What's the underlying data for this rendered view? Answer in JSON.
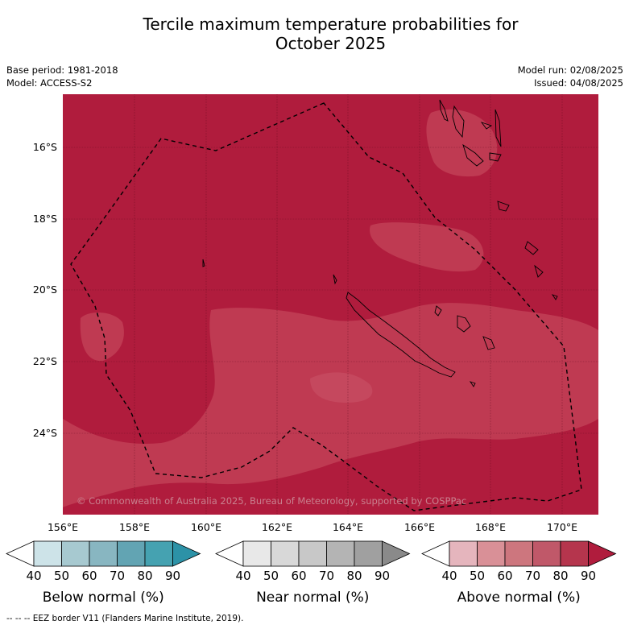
{
  "title_line1": "Tercile maximum temperature probabilities for",
  "title_line2": "October 2025",
  "base_period": "Base period: 1981-2018",
  "model": "Model: ACCESS-S2",
  "model_run": "Model run: 02/08/2025",
  "issued": "Issued: 04/08/2025",
  "lat_labels": [
    "16°S",
    "18°S",
    "20°S",
    "22°S",
    "24°S"
  ],
  "lon_labels": [
    "156°E",
    "158°E",
    "160°E",
    "162°E",
    "164°E",
    "166°E",
    "168°E",
    "170°E"
  ],
  "copyright": "© Commonwealth of Australia 2025, Bureau of Meteorology, supported by COSPPac",
  "colorbars": [
    {
      "name": "Below normal (%)",
      "ticks": [
        "40",
        "50",
        "60",
        "70",
        "80",
        "90"
      ],
      "colors": [
        "#ffffff",
        "#cde3e8",
        "#a7c9d0",
        "#88b6c1",
        "#62a4b3",
        "#45a2b1",
        "#2c92a7"
      ]
    },
    {
      "name": "Near normal (%)",
      "ticks": [
        "40",
        "50",
        "60",
        "70",
        "80",
        "90"
      ],
      "colors": [
        "#ffffff",
        "#e8e8e8",
        "#d8d8d8",
        "#c8c8c8",
        "#b4b4b4",
        "#a0a0a0",
        "#8a8a8a"
      ]
    },
    {
      "name": "Above normal (%)",
      "ticks": [
        "40",
        "50",
        "60",
        "70",
        "80",
        "90"
      ],
      "colors": [
        "#ffffff",
        "#e5b5bd",
        "#d99097",
        "#cd767e",
        "#c05869",
        "#b5354d",
        "#b01c3d"
      ]
    }
  ],
  "footnote": "--  --  -- EEZ border V11 (Flanders Marine Institute, 2019).",
  "map_colors": {
    "dominant": "#b01c3d",
    "lighter_zone": "#bf3a52",
    "lightest_zone": "#c5485e"
  }
}
